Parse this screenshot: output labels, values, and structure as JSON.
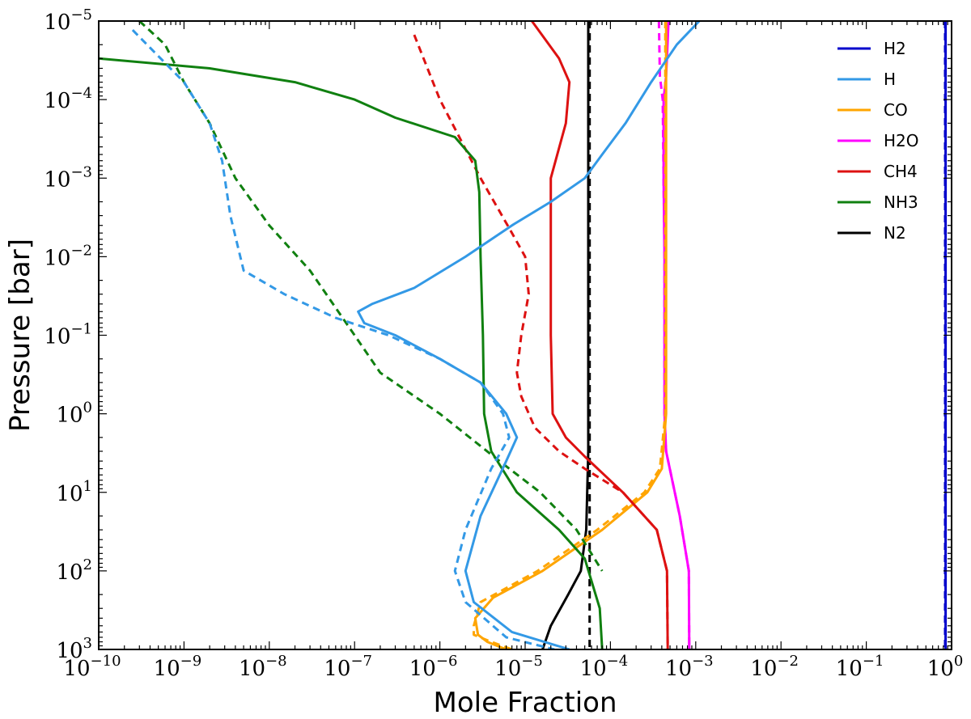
{
  "chart_data": {
    "type": "line",
    "xlabel": "Mole Fraction",
    "ylabel": "Pressure [bar]",
    "xscale": "log",
    "yscale": "log",
    "xlim": [
      1e-10,
      1
    ],
    "ylim": [
      1000,
      1e-05
    ],
    "y_inverted": true,
    "x_ticks": [
      {
        "value": 1e-10,
        "base": "10",
        "exp": "−10"
      },
      {
        "value": 1e-09,
        "base": "10",
        "exp": "−9"
      },
      {
        "value": 1e-08,
        "base": "10",
        "exp": "−8"
      },
      {
        "value": 1e-07,
        "base": "10",
        "exp": "−7"
      },
      {
        "value": 1e-06,
        "base": "10",
        "exp": "−6"
      },
      {
        "value": 1e-05,
        "base": "10",
        "exp": "−5"
      },
      {
        "value": 0.0001,
        "base": "10",
        "exp": "−4"
      },
      {
        "value": 0.001,
        "base": "10",
        "exp": "−3"
      },
      {
        "value": 0.01,
        "base": "10",
        "exp": "−2"
      },
      {
        "value": 0.1,
        "base": "10",
        "exp": "−1"
      },
      {
        "value": 1,
        "base": "10",
        "exp": "0"
      }
    ],
    "y_ticks": [
      {
        "value": 1e-05,
        "base": "10",
        "exp": "−5"
      },
      {
        "value": 0.0001,
        "base": "10",
        "exp": "−4"
      },
      {
        "value": 0.001,
        "base": "10",
        "exp": "−3"
      },
      {
        "value": 0.01,
        "base": "10",
        "exp": "−2"
      },
      {
        "value": 0.1,
        "base": "10",
        "exp": "−1"
      },
      {
        "value": 1,
        "base": "10",
        "exp": "0"
      },
      {
        "value": 10,
        "base": "10",
        "exp": "1"
      },
      {
        "value": 100,
        "base": "10",
        "exp": "2"
      },
      {
        "value": 1000,
        "base": "10",
        "exp": "3"
      }
    ],
    "legend": {
      "placement": "top-right",
      "entries": [
        {
          "label": "H2",
          "color": "#0000cc"
        },
        {
          "label": "H",
          "color": "#3399e6"
        },
        {
          "label": "CO",
          "color": "#ffa500"
        },
        {
          "label": "H2O",
          "color": "#ff00ff"
        },
        {
          "label": "CH4",
          "color": "#dd1111"
        },
        {
          "label": "NH3",
          "color": "#108010"
        },
        {
          "label": "N2",
          "color": "#000000"
        }
      ]
    },
    "series": [
      {
        "name": "H2 dashed",
        "color": "#0000cc",
        "dash": true,
        "points": [
          [
            0.84,
            1e-05
          ],
          [
            0.84,
            1000
          ]
        ]
      },
      {
        "name": "H2",
        "color": "#0000cc",
        "dash": false,
        "points": [
          [
            0.85,
            1e-05
          ],
          [
            0.85,
            1000
          ]
        ]
      },
      {
        "name": "N2 dashed",
        "color": "#000000",
        "dash": true,
        "points": [
          [
            5.7e-05,
            1e-05
          ],
          [
            5.7e-05,
            1000
          ]
        ]
      },
      {
        "name": "N2",
        "color": "#000000",
        "dash": false,
        "points": [
          [
            5.5e-05,
            1e-05
          ],
          [
            5.5e-05,
            3
          ],
          [
            5.2e-05,
            30
          ],
          [
            4.5e-05,
            100
          ],
          [
            3.2e-05,
            200
          ],
          [
            2e-05,
            500
          ],
          [
            1.6e-05,
            1000
          ]
        ]
      },
      {
        "name": "H2O dashed",
        "color": "#ff00ff",
        "dash": true,
        "points": [
          [
            0.00037,
            1e-05
          ],
          [
            0.00038,
            5e-05
          ],
          [
            0.00041,
            0.0001
          ],
          [
            0.00042,
            0.001
          ],
          [
            0.00043,
            0.01
          ],
          [
            0.00043,
            1
          ],
          [
            0.00045,
            3
          ],
          [
            0.00065,
            20
          ],
          [
            0.00083,
            100
          ],
          [
            0.00084,
            1000
          ]
        ]
      },
      {
        "name": "H2O",
        "color": "#ff00ff",
        "dash": false,
        "points": [
          [
            0.00048,
            1e-05
          ],
          [
            0.00045,
            5e-05
          ],
          [
            0.00042,
            0.0001
          ],
          [
            0.00042,
            0.001
          ],
          [
            0.00043,
            0.01
          ],
          [
            0.00043,
            1
          ],
          [
            0.00045,
            3
          ],
          [
            0.00065,
            20
          ],
          [
            0.00083,
            100
          ],
          [
            0.00084,
            1000
          ]
        ]
      },
      {
        "name": "CO dashed",
        "color": "#ffa500",
        "dash": true,
        "points": [
          [
            0.00044,
            1e-05
          ],
          [
            0.00044,
            1
          ],
          [
            0.00038,
            5
          ],
          [
            0.00025,
            10
          ],
          [
            7e-05,
            30
          ],
          [
            1.4e-05,
            100
          ],
          [
            3e-06,
            250
          ],
          [
            2.5e-06,
            500
          ],
          [
            2.5e-06,
            650
          ],
          [
            4e-06,
            800
          ],
          [
            7e-06,
            1000
          ]
        ]
      },
      {
        "name": "CO",
        "color": "#ffa500",
        "dash": false,
        "points": [
          [
            0.00045,
            1e-05
          ],
          [
            0.00045,
            1
          ],
          [
            0.0004,
            5
          ],
          [
            0.00027,
            10
          ],
          [
            8e-05,
            30
          ],
          [
            1.6e-05,
            100
          ],
          [
            4.2e-06,
            220
          ],
          [
            2.6e-06,
            400
          ],
          [
            2.8e-06,
            650
          ],
          [
            3.6e-06,
            800
          ],
          [
            6e-06,
            1000
          ]
        ]
      },
      {
        "name": "CH4 dashed",
        "color": "#dd1111",
        "dash": true,
        "points": [
          [
            5e-07,
            1.5e-05
          ],
          [
            1e-06,
            0.0001
          ],
          [
            3e-06,
            0.001
          ],
          [
            7e-06,
            0.005
          ],
          [
            1e-05,
            0.01
          ],
          [
            1.1e-05,
            0.03
          ],
          [
            9e-06,
            0.1
          ],
          [
            8e-06,
            0.3
          ],
          [
            9e-06,
            0.6
          ],
          [
            1.3e-05,
            1.5
          ],
          [
            2.5e-05,
            3
          ],
          [
            5e-05,
            5
          ],
          [
            0.00014,
            10
          ],
          [
            0.00035,
            30
          ],
          [
            0.00046,
            100
          ],
          [
            0.00047,
            1000
          ]
        ]
      },
      {
        "name": "CH4",
        "color": "#dd1111",
        "dash": false,
        "points": [
          [
            1.2e-05,
            1e-05
          ],
          [
            2.5e-05,
            3e-05
          ],
          [
            3.3e-05,
            6e-05
          ],
          [
            3e-05,
            0.0002
          ],
          [
            2e-05,
            0.001
          ],
          [
            2e-05,
            0.01
          ],
          [
            2e-05,
            0.1
          ],
          [
            2.1e-05,
            1
          ],
          [
            3e-05,
            2
          ],
          [
            5e-05,
            3.5
          ],
          [
            0.00014,
            10
          ],
          [
            0.00035,
            30
          ],
          [
            0.00046,
            100
          ],
          [
            0.00047,
            1000
          ]
        ]
      },
      {
        "name": "NH3 dashed",
        "color": "#108010",
        "dash": true,
        "points": [
          [
            3e-10,
            1e-05
          ],
          [
            6e-10,
            2e-05
          ],
          [
            1e-09,
            6e-05
          ],
          [
            2e-09,
            0.0002
          ],
          [
            4e-09,
            0.001
          ],
          [
            1e-08,
            0.004
          ],
          [
            3e-08,
            0.015
          ],
          [
            1e-07,
            0.1
          ],
          [
            2e-07,
            0.3
          ],
          [
            1e-06,
            1
          ],
          [
            5e-06,
            4
          ],
          [
            1.5e-05,
            10
          ],
          [
            4e-05,
            30
          ],
          [
            8e-05,
            100
          ]
        ]
      },
      {
        "name": "NH3",
        "color": "#108010",
        "dash": false,
        "points": [
          [
            1e-10,
            3e-05
          ],
          [
            2e-09,
            4e-05
          ],
          [
            2e-08,
            6e-05
          ],
          [
            1e-07,
            0.0001
          ],
          [
            3e-07,
            0.00017
          ],
          [
            1.5e-06,
            0.0003
          ],
          [
            2.6e-06,
            0.0006
          ],
          [
            2.9e-06,
            0.0015
          ],
          [
            3e-06,
            0.01
          ],
          [
            3.2e-06,
            0.1
          ],
          [
            3.3e-06,
            1
          ],
          [
            4e-06,
            3
          ],
          [
            8e-06,
            10
          ],
          [
            2.5e-05,
            30
          ],
          [
            5e-05,
            70
          ],
          [
            7.5e-05,
            300
          ],
          [
            8e-05,
            1000
          ]
        ]
      },
      {
        "name": "H dashed",
        "color": "#3399e6",
        "dash": true,
        "points": [
          [
            2.5e-10,
            1.3e-05
          ],
          [
            1e-09,
            6e-05
          ],
          [
            2e-09,
            0.0002
          ],
          [
            2.8e-09,
            0.0006
          ],
          [
            3.5e-09,
            0.003
          ],
          [
            5e-09,
            0.015
          ],
          [
            1.5e-08,
            0.03
          ],
          [
            6e-08,
            0.06
          ],
          [
            2.5e-07,
            0.1
          ],
          [
            1e-06,
            0.2
          ],
          [
            3e-06,
            0.4
          ],
          [
            5.5e-06,
            1
          ],
          [
            6.5e-06,
            2
          ],
          [
            4e-06,
            5
          ],
          [
            2e-06,
            30
          ],
          [
            1.5e-06,
            100
          ],
          [
            2e-06,
            250
          ],
          [
            6e-06,
            700
          ],
          [
            2.2e-05,
            1000
          ]
        ]
      },
      {
        "name": "H",
        "color": "#3399e6",
        "dash": false,
        "points": [
          [
            0.0011,
            1e-05
          ],
          [
            0.0006,
            2e-05
          ],
          [
            0.0003,
            6e-05
          ],
          [
            0.00015,
            0.0002
          ],
          [
            8e-05,
            0.0005
          ],
          [
            5e-05,
            0.001
          ],
          [
            2e-05,
            0.002
          ],
          [
            7e-06,
            0.004
          ],
          [
            2e-06,
            0.01
          ],
          [
            5e-07,
            0.025
          ],
          [
            1.6e-07,
            0.04
          ],
          [
            1.1e-07,
            0.05
          ],
          [
            1.3e-07,
            0.07
          ],
          [
            3e-07,
            0.1
          ],
          [
            1e-06,
            0.2
          ],
          [
            3e-06,
            0.4
          ],
          [
            6e-06,
            1
          ],
          [
            8e-06,
            2
          ],
          [
            6e-06,
            4
          ],
          [
            3e-06,
            20
          ],
          [
            2e-06,
            100
          ],
          [
            2.5e-06,
            250
          ],
          [
            7e-06,
            600
          ],
          [
            3.3e-05,
            1000
          ]
        ]
      }
    ]
  }
}
